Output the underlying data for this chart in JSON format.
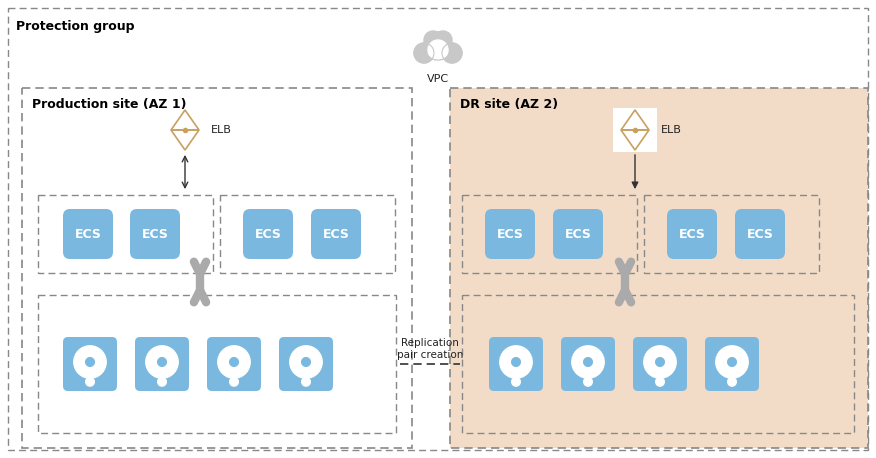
{
  "bg_color": "#ffffff",
  "outer_border_color": "#bbbbbb",
  "dashed_border_color": "#888888",
  "prod_bg": "#ffffff",
  "dr_bg": "#f2dcc8",
  "ecs_color": "#7ab8e0",
  "disk_color": "#7ab8e0",
  "cloud_color": "#c8c8c8",
  "arrow_gray": "#aaaaaa",
  "arrow_dark": "#333333",
  "title": "Protection group",
  "prod_label": "Production site (AZ 1)",
  "dr_label": "DR site (AZ 2)",
  "vpc_label": "VPC",
  "elb_label": "ELB",
  "replication_label": "Replication\npair creation",
  "font_color": "#222222",
  "font_color_bold": "#000000"
}
